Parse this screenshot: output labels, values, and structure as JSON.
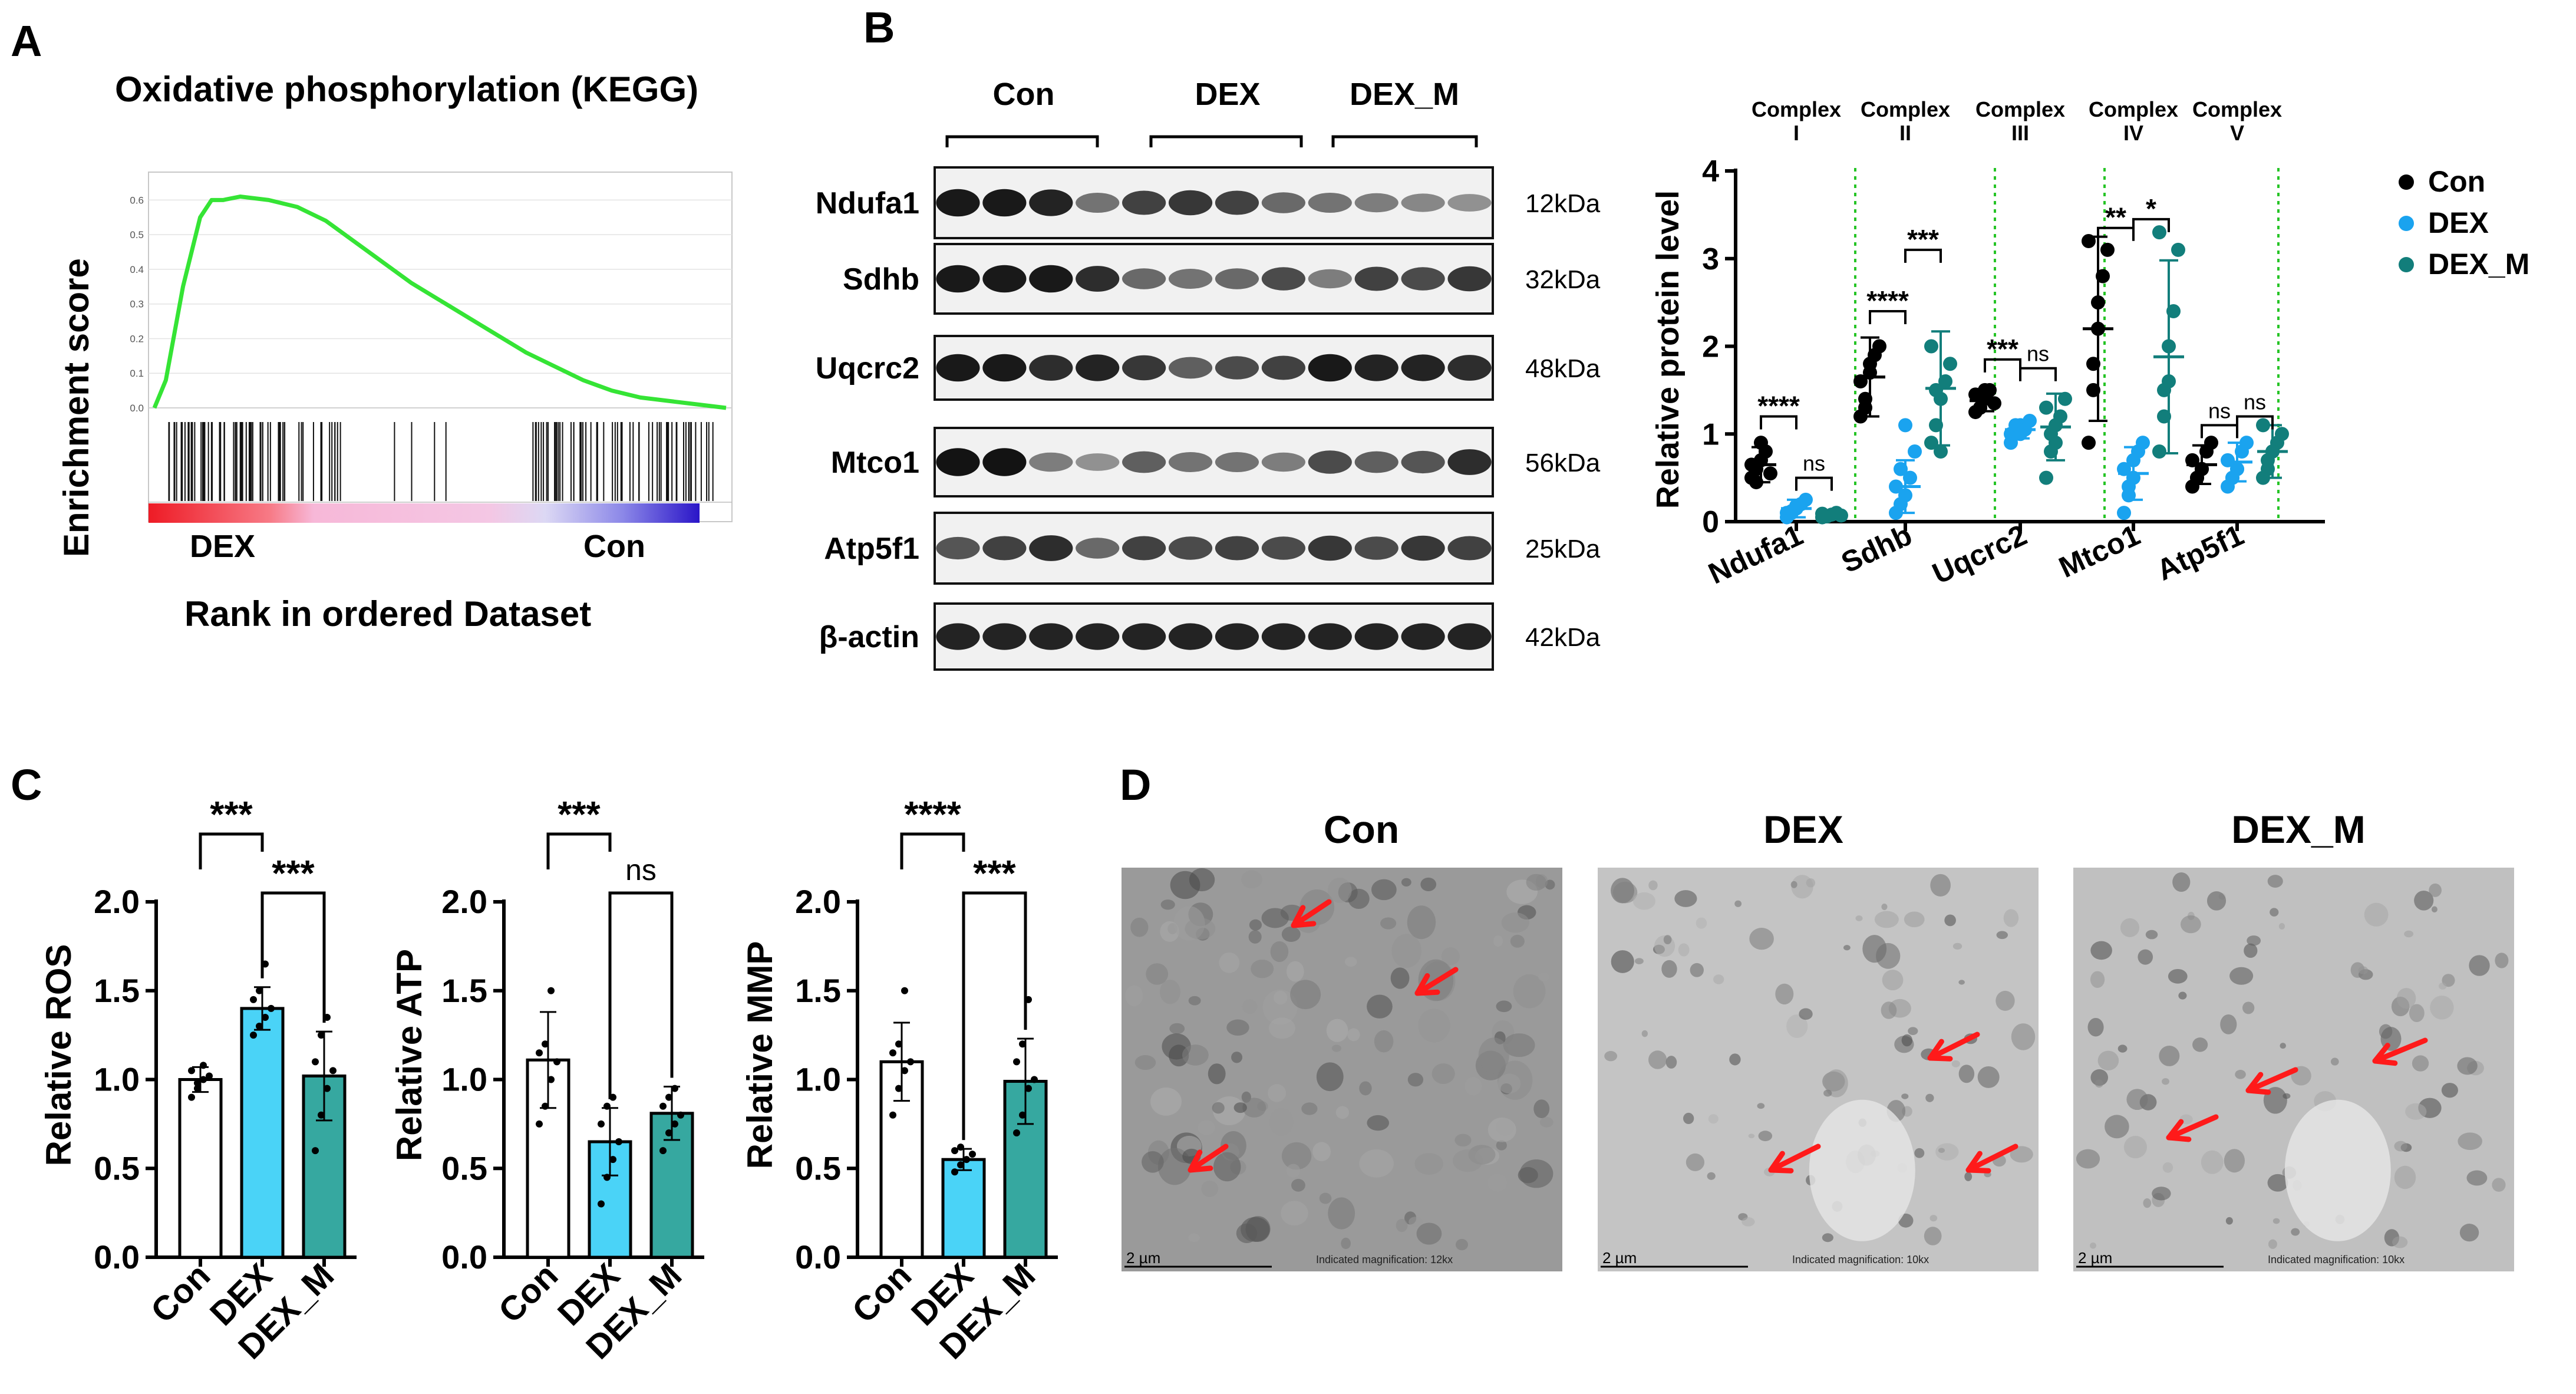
{
  "colors": {
    "con": "#000000",
    "dex": "#1aa3ef",
    "dexm": "#127e7b",
    "gsea_line": "#35e435",
    "arrow": "#ff1a1a",
    "bar_dex": "#4ad3f7",
    "bar_dexm": "#36a8a0"
  },
  "panelA": {
    "label": "A",
    "title": "Oxidative phosphorylation (KEGG)",
    "ylabel": "Enrichment score",
    "xlabel": "Rank in ordered Dataset",
    "left_group": "DEX",
    "right_group": "Con",
    "yticks": [
      "0.6",
      "0.5",
      "0.4",
      "0.3",
      "0.2",
      "0.1",
      "0.0"
    ]
  },
  "panelB": {
    "label": "B",
    "groups": [
      "Con",
      "DEX",
      "DEX_M"
    ],
    "blots": [
      {
        "protein": "Ndufa1",
        "size": "12kDa"
      },
      {
        "protein": "Sdhb",
        "size": "32kDa"
      },
      {
        "protein": "Uqcrc2",
        "size": "48kDa"
      },
      {
        "protein": "Mtco1",
        "size": "56kDa"
      },
      {
        "protein": "Atp5f1",
        "size": "25kDa"
      },
      {
        "protein": "β-actin",
        "size": "42kDa"
      }
    ],
    "complexes": [
      {
        "name": "Complex",
        "num": "I"
      },
      {
        "name": "Complex",
        "num": "II"
      },
      {
        "name": "Complex",
        "num": "III"
      },
      {
        "name": "Complex",
        "num": "IV"
      },
      {
        "name": "Complex",
        "num": "V"
      }
    ],
    "legend": [
      "Con",
      "DEX",
      "DEX_M"
    ]
  },
  "panelC": {
    "label": "C"
  },
  "panelD": {
    "label": "D",
    "images": [
      {
        "title": "Con",
        "scale": "2 µm",
        "mag": "Indicated magnification: 12kx"
      },
      {
        "title": "DEX",
        "scale": "2 µm",
        "mag": "Indicated magnification: 10kx"
      },
      {
        "title": "DEX_M",
        "scale": "2 µm",
        "mag": "Indicated magnification: 10kx"
      }
    ]
  },
  "chart_data": [
    {
      "type": "line",
      "id": "gsea",
      "title": "Oxidative phosphorylation (KEGG)",
      "xlabel": "Rank in ordered Dataset",
      "ylabel": "Enrichment score",
      "ylim": [
        0,
        0.65
      ],
      "x": [
        0,
        0.02,
        0.05,
        0.08,
        0.1,
        0.12,
        0.15,
        0.2,
        0.25,
        0.3,
        0.35,
        0.4,
        0.45,
        0.5,
        0.55,
        0.6,
        0.65,
        0.7,
        0.75,
        0.8,
        0.85,
        0.9,
        0.95,
        1.0
      ],
      "y": [
        0,
        0.08,
        0.35,
        0.55,
        0.6,
        0.6,
        0.61,
        0.6,
        0.58,
        0.54,
        0.48,
        0.42,
        0.36,
        0.31,
        0.26,
        0.21,
        0.16,
        0.12,
        0.08,
        0.05,
        0.03,
        0.02,
        0.01,
        0.0
      ]
    },
    {
      "type": "scatter",
      "id": "western-quant",
      "ylabel": "Relative protein level",
      "ylim": [
        0,
        4
      ],
      "yticks": [
        0,
        1,
        2,
        3,
        4
      ],
      "categories": [
        "Ndufa1",
        "Sdhb",
        "Uqcrc2",
        "Mtco1",
        "Atp5f1"
      ],
      "series": [
        {
          "name": "Con",
          "means": [
            0.65,
            1.65,
            1.38,
            2.2,
            0.65
          ],
          "sd": [
            0.2,
            0.45,
            0.12,
            1.05,
            0.22
          ],
          "points": [
            [
              0.5,
              0.6,
              0.7,
              0.8,
              0.55,
              0.65,
              0.45,
              0.9
            ],
            [
              1.2,
              1.4,
              1.7,
              1.9,
              2.0,
              1.6,
              1.3,
              1.8
            ],
            [
              1.25,
              1.3,
              1.4,
              1.5,
              1.35,
              1.45,
              1.3,
              1.5
            ],
            [
              0.9,
              1.5,
              2.2,
              2.8,
              3.1,
              3.2,
              1.8,
              2.5
            ],
            [
              0.4,
              0.5,
              0.6,
              0.8,
              0.9,
              0.7,
              0.5,
              0.6
            ]
          ]
        },
        {
          "name": "DEX",
          "means": [
            0.15,
            0.4,
            1.05,
            0.55,
            0.68
          ],
          "sd": [
            0.1,
            0.3,
            0.1,
            0.3,
            0.22
          ],
          "points": [
            [
              0.05,
              0.1,
              0.15,
              0.2,
              0.25,
              0.1,
              0.12,
              0.18
            ],
            [
              0.1,
              0.2,
              0.3,
              0.5,
              0.8,
              0.4,
              0.6,
              1.1
            ],
            [
              0.9,
              1.0,
              1.1,
              1.05,
              1.15,
              1.0,
              1.1,
              1.0
            ],
            [
              0.1,
              0.3,
              0.5,
              0.8,
              0.9,
              0.6,
              0.4,
              0.7
            ],
            [
              0.4,
              0.5,
              0.6,
              0.8,
              0.9,
              0.7,
              0.5,
              0.6
            ]
          ]
        },
        {
          "name": "DEX_M",
          "means": [
            0.08,
            1.52,
            1.08,
            1.88,
            0.8
          ],
          "sd": [
            0.03,
            0.65,
            0.38,
            1.1,
            0.3
          ],
          "points": [
            [
              0.05,
              0.06,
              0.08,
              0.1,
              0.07,
              0.09
            ],
            [
              0.9,
              1.1,
              1.4,
              1.6,
              1.8,
              2.0,
              1.5,
              0.8
            ],
            [
              0.5,
              0.8,
              1.1,
              1.2,
              1.4,
              1.3,
              1.0,
              0.9
            ],
            [
              0.8,
              1.2,
              1.6,
              2.4,
              3.1,
              3.3,
              1.5,
              2.0
            ],
            [
              0.5,
              0.6,
              0.8,
              0.9,
              1.0,
              1.1,
              0.7,
              0.8
            ]
          ]
        }
      ],
      "annotations": [
        {
          "category": "Ndufa1",
          "pair": [
            "Con",
            "DEX"
          ],
          "label": "****"
        },
        {
          "category": "Ndufa1",
          "pair": [
            "DEX",
            "DEX_M"
          ],
          "label": "ns"
        },
        {
          "category": "Sdhb",
          "pair": [
            "Con",
            "DEX"
          ],
          "label": "****"
        },
        {
          "category": "Sdhb",
          "pair": [
            "DEX",
            "DEX_M"
          ],
          "label": "***"
        },
        {
          "category": "Uqcrc2",
          "pair": [
            "Con",
            "DEX"
          ],
          "label": "***"
        },
        {
          "category": "Uqcrc2",
          "pair": [
            "DEX",
            "DEX_M"
          ],
          "label": "ns"
        },
        {
          "category": "Mtco1",
          "pair": [
            "Con",
            "DEX"
          ],
          "label": "**"
        },
        {
          "category": "Mtco1",
          "pair": [
            "DEX",
            "DEX_M"
          ],
          "label": "*"
        },
        {
          "category": "Atp5f1",
          "pair": [
            "Con",
            "DEX"
          ],
          "label": "ns"
        },
        {
          "category": "Atp5f1",
          "pair": [
            "DEX",
            "DEX_M"
          ],
          "label": "ns"
        }
      ]
    },
    {
      "type": "bar",
      "id": "ros",
      "ylabel": "Relative ROS",
      "ylim": [
        0,
        2
      ],
      "yticks": [
        "0.0",
        "0.5",
        "1.0",
        "1.5",
        "2.0"
      ],
      "categories": [
        "Con",
        "DEX",
        "DEX_M"
      ],
      "values": [
        1.0,
        1.4,
        1.02
      ],
      "sd": [
        0.07,
        0.12,
        0.25
      ],
      "points": [
        [
          0.9,
          0.95,
          1.0,
          1.02,
          1.05,
          0.98,
          1.08
        ],
        [
          1.25,
          1.3,
          1.35,
          1.4,
          1.45,
          1.5,
          1.65
        ],
        [
          0.6,
          0.8,
          0.95,
          1.05,
          1.1,
          1.25,
          1.35
        ]
      ],
      "annotations": [
        {
          "pair": [
            "Con",
            "DEX"
          ],
          "label": "***"
        },
        {
          "pair": [
            "DEX",
            "DEX_M"
          ],
          "label": "***"
        }
      ]
    },
    {
      "type": "bar",
      "id": "atp",
      "ylabel": "Relative ATP",
      "ylim": [
        0,
        2
      ],
      "yticks": [
        "0.0",
        "0.5",
        "1.0",
        "1.5",
        "2.0"
      ],
      "categories": [
        "Con",
        "DEX",
        "DEX_M"
      ],
      "values": [
        1.11,
        0.65,
        0.81
      ],
      "sd": [
        0.27,
        0.19,
        0.15
      ],
      "points": [
        [
          0.75,
          0.85,
          1.0,
          1.1,
          1.15,
          1.2,
          1.5
        ],
        [
          0.3,
          0.45,
          0.55,
          0.65,
          0.75,
          0.85,
          0.9
        ],
        [
          0.6,
          0.7,
          0.75,
          0.8,
          0.85,
          0.9,
          0.95
        ]
      ],
      "annotations": [
        {
          "pair": [
            "Con",
            "DEX"
          ],
          "label": "***"
        },
        {
          "pair": [
            "DEX",
            "DEX_M"
          ],
          "label": "ns"
        }
      ]
    },
    {
      "type": "bar",
      "id": "mmp",
      "ylabel": "Relative MMP",
      "ylim": [
        0,
        2
      ],
      "yticks": [
        "0.0",
        "0.5",
        "1.0",
        "1.5",
        "2.0"
      ],
      "categories": [
        "Con",
        "DEX",
        "DEX_M"
      ],
      "values": [
        1.1,
        0.55,
        0.99
      ],
      "sd": [
        0.22,
        0.06,
        0.24
      ],
      "points": [
        [
          0.8,
          0.95,
          1.05,
          1.1,
          1.15,
          1.2,
          1.5
        ],
        [
          0.48,
          0.52,
          0.55,
          0.58,
          0.6,
          0.62
        ],
        [
          0.7,
          0.8,
          0.95,
          1.0,
          1.1,
          1.2,
          1.45
        ]
      ],
      "annotations": [
        {
          "pair": [
            "Con",
            "DEX"
          ],
          "label": "****"
        },
        {
          "pair": [
            "DEX",
            "DEX_M"
          ],
          "label": "***"
        }
      ]
    }
  ]
}
